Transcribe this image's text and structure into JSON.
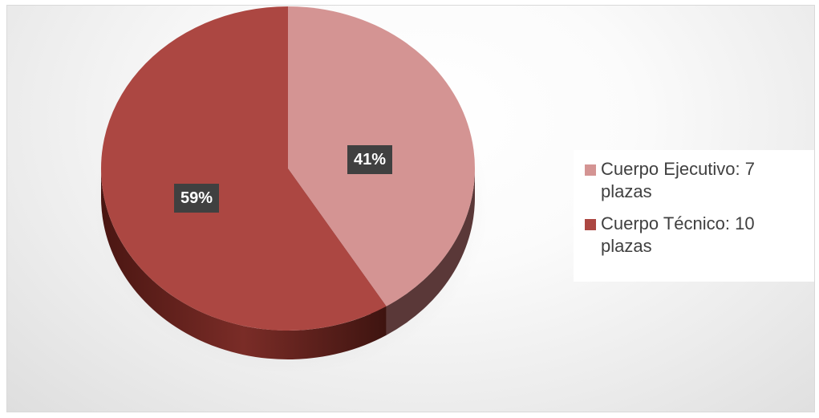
{
  "chart_data": {
    "type": "pie",
    "style": "3d",
    "slices": [
      {
        "name": "Cuerpo Ejecutivo: 7 plazas",
        "value": 7,
        "label": "41%",
        "color": "#d49493",
        "side_color": "#5a3838"
      },
      {
        "name": "Cuerpo Técnico: 10 plazas",
        "value": 10,
        "label": "59%",
        "color": "#ac4742",
        "side_color": "#6a2420"
      }
    ],
    "legend": {
      "placement": "right",
      "entries": [
        "Cuerpo Ejecutivo: 7 plazas",
        "Cuerpo Técnico: 10 plazas"
      ]
    },
    "data_labels": [
      "41%",
      "59%"
    ]
  }
}
